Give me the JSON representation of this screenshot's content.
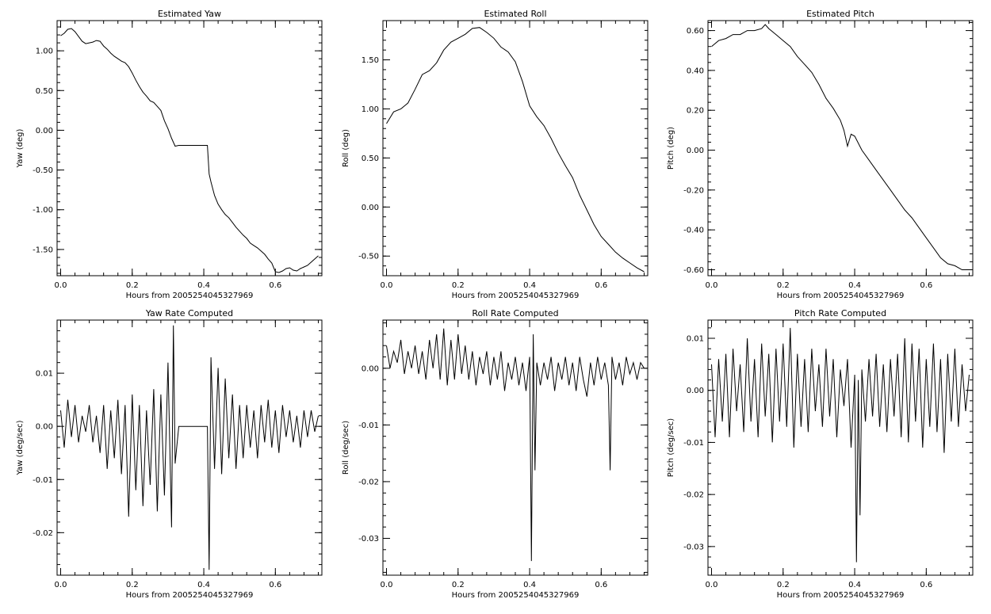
{
  "chart_data": [
    {
      "type": "line",
      "title": "Estimated Yaw",
      "xlabel": "Hours from 2005254045327969",
      "ylabel": "Yaw (deg)",
      "xlim": [
        -0.01,
        0.73
      ],
      "ylim": [
        -1.83,
        1.38
      ],
      "xticks": [
        0.0,
        0.2,
        0.4,
        0.6
      ],
      "yticks": [
        -1.5,
        -1.0,
        -0.5,
        0.0,
        0.5,
        1.0
      ],
      "xtick_labels": [
        "0.0",
        "0.2",
        "0.4",
        "0.6"
      ],
      "ytick_labels": [
        "-1.50",
        "-1.00",
        "-0.50",
        "0.00",
        "0.50",
        "1.00"
      ],
      "series": [
        {
          "x": [
            0.0,
            0.01,
            0.02,
            0.03,
            0.04,
            0.05,
            0.06,
            0.07,
            0.08,
            0.09,
            0.1,
            0.11,
            0.12,
            0.13,
            0.14,
            0.15,
            0.16,
            0.17,
            0.18,
            0.19,
            0.2,
            0.21,
            0.22,
            0.23,
            0.24,
            0.25,
            0.26,
            0.27,
            0.28,
            0.29,
            0.3,
            0.31,
            0.32,
            0.33,
            0.34,
            0.35,
            0.36,
            0.37,
            0.38,
            0.39,
            0.4,
            0.41,
            0.415,
            0.42,
            0.43,
            0.44,
            0.45,
            0.46,
            0.47,
            0.48,
            0.49,
            0.5,
            0.51,
            0.52,
            0.53,
            0.54,
            0.55,
            0.56,
            0.57,
            0.58,
            0.59,
            0.6,
            0.61,
            0.62,
            0.63,
            0.64,
            0.65,
            0.66,
            0.67,
            0.68,
            0.69,
            0.7,
            0.71,
            0.72
          ],
          "y": [
            1.19,
            1.22,
            1.27,
            1.28,
            1.24,
            1.18,
            1.12,
            1.09,
            1.1,
            1.11,
            1.13,
            1.12,
            1.06,
            1.02,
            0.97,
            0.93,
            0.9,
            0.87,
            0.85,
            0.8,
            0.72,
            0.63,
            0.55,
            0.48,
            0.43,
            0.37,
            0.35,
            0.3,
            0.25,
            0.12,
            0.02,
            -0.1,
            -0.2,
            -0.19,
            -0.19,
            -0.19,
            -0.19,
            -0.19,
            -0.19,
            -0.19,
            -0.19,
            -0.19,
            -0.55,
            -0.65,
            -0.82,
            -0.93,
            -1.0,
            -1.06,
            -1.1,
            -1.16,
            -1.22,
            -1.27,
            -1.32,
            -1.36,
            -1.42,
            -1.45,
            -1.48,
            -1.52,
            -1.56,
            -1.62,
            -1.67,
            -1.78,
            -1.79,
            -1.77,
            -1.74,
            -1.73,
            -1.76,
            -1.77,
            -1.74,
            -1.72,
            -1.7,
            -1.66,
            -1.62,
            -1.58
          ]
        }
      ]
    },
    {
      "type": "line",
      "title": "Estimated Roll",
      "xlabel": "Hours from 2005254045327969",
      "ylabel": "Roll (deg)",
      "xlim": [
        -0.01,
        0.73
      ],
      "ylim": [
        -0.7,
        1.9
      ],
      "xticks": [
        0.0,
        0.2,
        0.4,
        0.6
      ],
      "yticks": [
        -0.5,
        0.0,
        0.5,
        1.0,
        1.5
      ],
      "xtick_labels": [
        "0.0",
        "0.2",
        "0.4",
        "0.6"
      ],
      "ytick_labels": [
        "-0.50",
        "0.00",
        "0.50",
        "1.00",
        "1.50"
      ],
      "series": [
        {
          "x": [
            0.0,
            0.02,
            0.04,
            0.06,
            0.08,
            0.1,
            0.12,
            0.14,
            0.16,
            0.18,
            0.2,
            0.22,
            0.24,
            0.26,
            0.28,
            0.3,
            0.32,
            0.34,
            0.36,
            0.38,
            0.4,
            0.42,
            0.44,
            0.46,
            0.48,
            0.5,
            0.52,
            0.54,
            0.56,
            0.58,
            0.6,
            0.62,
            0.64,
            0.66,
            0.68,
            0.7,
            0.72
          ],
          "y": [
            0.85,
            0.97,
            1.0,
            1.06,
            1.2,
            1.35,
            1.39,
            1.47,
            1.6,
            1.68,
            1.72,
            1.76,
            1.82,
            1.83,
            1.78,
            1.72,
            1.63,
            1.58,
            1.48,
            1.28,
            1.03,
            0.92,
            0.83,
            0.7,
            0.55,
            0.42,
            0.3,
            0.12,
            -0.03,
            -0.18,
            -0.3,
            -0.38,
            -0.46,
            -0.52,
            -0.57,
            -0.62,
            -0.66
          ]
        }
      ]
    },
    {
      "type": "line",
      "title": "Estimated Pitch",
      "xlabel": "Hours from 2005254045327969",
      "ylabel": "Pitch (deg)",
      "xlim": [
        -0.01,
        0.73
      ],
      "ylim": [
        -0.63,
        0.65
      ],
      "xticks": [
        0.0,
        0.2,
        0.4,
        0.6
      ],
      "yticks": [
        -0.6,
        -0.4,
        -0.2,
        0.0,
        0.2,
        0.4,
        0.6
      ],
      "xtick_labels": [
        "0.0",
        "0.2",
        "0.4",
        "0.6"
      ],
      "ytick_labels": [
        "-0.60",
        "-0.40",
        "-0.20",
        "0.00",
        "0.20",
        "0.40",
        "0.60"
      ],
      "series": [
        {
          "x": [
            0.0,
            0.02,
            0.04,
            0.06,
            0.08,
            0.1,
            0.12,
            0.14,
            0.15,
            0.16,
            0.18,
            0.2,
            0.22,
            0.24,
            0.26,
            0.28,
            0.3,
            0.32,
            0.34,
            0.36,
            0.37,
            0.38,
            0.39,
            0.4,
            0.42,
            0.44,
            0.46,
            0.48,
            0.5,
            0.52,
            0.54,
            0.56,
            0.58,
            0.6,
            0.62,
            0.64,
            0.66,
            0.68,
            0.7,
            0.72
          ],
          "y": [
            0.52,
            0.55,
            0.56,
            0.58,
            0.58,
            0.6,
            0.6,
            0.61,
            0.63,
            0.61,
            0.58,
            0.55,
            0.52,
            0.47,
            0.43,
            0.39,
            0.33,
            0.26,
            0.21,
            0.15,
            0.1,
            0.02,
            0.08,
            0.07,
            0.0,
            -0.05,
            -0.1,
            -0.15,
            -0.2,
            -0.25,
            -0.3,
            -0.34,
            -0.39,
            -0.44,
            -0.49,
            -0.54,
            -0.57,
            -0.58,
            -0.6,
            -0.6
          ]
        }
      ]
    },
    {
      "type": "line",
      "title": "Yaw Rate Computed",
      "xlabel": "Hours from 2005254045327969",
      "ylabel": "Yaw (deg/sec)",
      "xlim": [
        -0.01,
        0.73
      ],
      "ylim": [
        -0.028,
        0.02
      ],
      "xticks": [
        0.0,
        0.2,
        0.4,
        0.6
      ],
      "yticks": [
        -0.02,
        -0.01,
        0.0,
        0.01
      ],
      "xtick_labels": [
        "0.0",
        "0.2",
        "0.4",
        "0.6"
      ],
      "ytick_labels": [
        "-0.02",
        "-0.01",
        "0.00",
        "0.01"
      ],
      "series": [
        {
          "x": [
            0.0,
            0.01,
            0.02,
            0.03,
            0.04,
            0.05,
            0.06,
            0.07,
            0.08,
            0.09,
            0.1,
            0.11,
            0.12,
            0.13,
            0.14,
            0.15,
            0.16,
            0.17,
            0.18,
            0.19,
            0.2,
            0.21,
            0.22,
            0.23,
            0.24,
            0.25,
            0.26,
            0.27,
            0.28,
            0.29,
            0.3,
            0.31,
            0.315,
            0.32,
            0.33,
            0.35,
            0.37,
            0.39,
            0.41,
            0.415,
            0.42,
            0.43,
            0.44,
            0.45,
            0.46,
            0.47,
            0.48,
            0.49,
            0.5,
            0.51,
            0.52,
            0.53,
            0.54,
            0.55,
            0.56,
            0.57,
            0.58,
            0.59,
            0.6,
            0.61,
            0.62,
            0.63,
            0.64,
            0.65,
            0.66,
            0.67,
            0.68,
            0.69,
            0.7,
            0.71,
            0.72
          ],
          "y": [
            0.003,
            -0.004,
            0.005,
            -0.002,
            0.004,
            -0.003,
            0.002,
            -0.001,
            0.004,
            -0.003,
            0.002,
            -0.005,
            0.004,
            -0.008,
            0.003,
            -0.006,
            0.005,
            -0.009,
            0.004,
            -0.017,
            0.006,
            -0.012,
            0.004,
            -0.015,
            0.003,
            -0.011,
            0.007,
            -0.016,
            0.006,
            -0.013,
            0.012,
            -0.019,
            0.019,
            -0.007,
            0.0,
            0.0,
            0.0,
            0.0,
            0.0,
            -0.027,
            0.013,
            -0.008,
            0.011,
            -0.009,
            0.009,
            -0.006,
            0.006,
            -0.008,
            0.004,
            -0.006,
            0.004,
            -0.004,
            0.003,
            -0.006,
            0.004,
            -0.003,
            0.005,
            -0.004,
            0.003,
            -0.005,
            0.004,
            -0.002,
            0.003,
            -0.003,
            0.002,
            -0.004,
            0.003,
            -0.002,
            0.003,
            -0.001,
            0.002
          ]
        }
      ]
    },
    {
      "type": "line",
      "title": "Roll Rate Computed",
      "xlabel": "Hours from 2005254045327969",
      "ylabel": "Roll (deg/sec)",
      "xlim": [
        -0.01,
        0.73
      ],
      "ylim": [
        -0.0365,
        0.0085
      ],
      "xticks": [
        0.0,
        0.2,
        0.4,
        0.6
      ],
      "yticks": [
        -0.03,
        -0.02,
        -0.01,
        0.0
      ],
      "xtick_labels": [
        "0.0",
        "0.2",
        "0.4",
        "0.6"
      ],
      "ytick_labels": [
        "-0.03",
        "-0.02",
        "-0.01",
        "0.00"
      ],
      "series": [
        {
          "x": [
            0.0,
            0.01,
            0.02,
            0.03,
            0.04,
            0.05,
            0.06,
            0.07,
            0.08,
            0.09,
            0.1,
            0.11,
            0.12,
            0.13,
            0.14,
            0.15,
            0.16,
            0.17,
            0.18,
            0.19,
            0.2,
            0.21,
            0.22,
            0.23,
            0.24,
            0.25,
            0.26,
            0.27,
            0.28,
            0.29,
            0.3,
            0.31,
            0.32,
            0.33,
            0.34,
            0.35,
            0.36,
            0.37,
            0.38,
            0.39,
            0.4,
            0.405,
            0.41,
            0.415,
            0.42,
            0.43,
            0.44,
            0.45,
            0.46,
            0.47,
            0.48,
            0.49,
            0.5,
            0.51,
            0.52,
            0.53,
            0.54,
            0.55,
            0.56,
            0.57,
            0.58,
            0.59,
            0.6,
            0.61,
            0.62,
            0.625,
            0.63,
            0.64,
            0.65,
            0.66,
            0.67,
            0.68,
            0.69,
            0.7,
            0.71,
            0.72
          ],
          "y": [
            0.004,
            0.0,
            0.003,
            0.001,
            0.005,
            -0.001,
            0.003,
            0.0,
            0.004,
            -0.001,
            0.003,
            -0.002,
            0.005,
            0.0,
            0.006,
            -0.002,
            0.007,
            -0.003,
            0.005,
            -0.002,
            0.006,
            -0.001,
            0.004,
            -0.002,
            0.003,
            -0.003,
            0.002,
            -0.001,
            0.003,
            -0.003,
            0.002,
            -0.002,
            0.003,
            -0.004,
            0.001,
            -0.002,
            0.002,
            -0.003,
            0.001,
            -0.004,
            0.002,
            -0.034,
            0.006,
            -0.018,
            0.001,
            -0.003,
            0.001,
            -0.002,
            0.002,
            -0.004,
            0.001,
            -0.002,
            0.002,
            -0.003,
            0.001,
            -0.004,
            0.002,
            -0.002,
            -0.005,
            0.001,
            -0.003,
            0.002,
            -0.002,
            0.001,
            -0.003,
            -0.018,
            0.002,
            -0.002,
            0.001,
            -0.003,
            0.002,
            -0.001,
            0.001,
            -0.002,
            0.001,
            0.0
          ]
        }
      ]
    },
    {
      "type": "line",
      "title": "Pitch Rate Computed",
      "xlabel": "Hours from 2005254045327969",
      "ylabel": "Pitch (deg/sec)",
      "xlim": [
        -0.01,
        0.73
      ],
      "ylim": [
        -0.0355,
        0.0135
      ],
      "xticks": [
        0.0,
        0.2,
        0.4,
        0.6
      ],
      "yticks": [
        -0.03,
        -0.02,
        -0.01,
        0.0,
        0.01
      ],
      "xtick_labels": [
        "0.0",
        "0.2",
        "0.4",
        "0.6"
      ],
      "ytick_labels": [
        "-0.03",
        "-0.02",
        "-0.01",
        "0.00",
        "0.01"
      ],
      "series": [
        {
          "x": [
            0.0,
            0.01,
            0.02,
            0.03,
            0.04,
            0.05,
            0.06,
            0.07,
            0.08,
            0.09,
            0.1,
            0.11,
            0.12,
            0.13,
            0.14,
            0.15,
            0.16,
            0.17,
            0.18,
            0.19,
            0.2,
            0.21,
            0.22,
            0.23,
            0.24,
            0.25,
            0.26,
            0.27,
            0.28,
            0.29,
            0.3,
            0.31,
            0.32,
            0.33,
            0.34,
            0.35,
            0.36,
            0.37,
            0.38,
            0.39,
            0.4,
            0.405,
            0.41,
            0.415,
            0.42,
            0.43,
            0.44,
            0.45,
            0.46,
            0.47,
            0.48,
            0.49,
            0.5,
            0.51,
            0.52,
            0.53,
            0.54,
            0.55,
            0.56,
            0.57,
            0.58,
            0.59,
            0.6,
            0.61,
            0.62,
            0.63,
            0.64,
            0.65,
            0.66,
            0.67,
            0.68,
            0.69,
            0.7,
            0.71,
            0.72
          ],
          "y": [
            0.005,
            -0.009,
            0.006,
            -0.006,
            0.007,
            -0.009,
            0.008,
            -0.004,
            0.005,
            -0.008,
            0.01,
            -0.006,
            0.006,
            -0.009,
            0.009,
            -0.005,
            0.007,
            -0.01,
            0.008,
            -0.006,
            0.009,
            -0.007,
            0.012,
            -0.011,
            0.007,
            -0.007,
            0.006,
            -0.008,
            0.008,
            -0.004,
            0.005,
            -0.007,
            0.008,
            -0.005,
            0.006,
            -0.009,
            0.004,
            -0.003,
            0.006,
            -0.011,
            0.003,
            -0.033,
            0.002,
            -0.024,
            0.004,
            -0.006,
            0.006,
            -0.005,
            0.007,
            -0.007,
            0.005,
            -0.008,
            0.006,
            -0.005,
            0.007,
            -0.009,
            0.01,
            -0.01,
            0.009,
            -0.006,
            0.008,
            -0.011,
            0.006,
            -0.007,
            0.009,
            -0.008,
            0.006,
            -0.012,
            0.007,
            -0.006,
            0.008,
            -0.007,
            0.005,
            -0.004,
            0.003
          ]
        }
      ]
    }
  ]
}
